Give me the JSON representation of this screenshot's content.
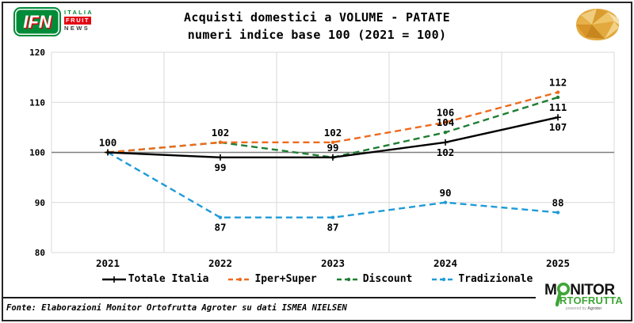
{
  "header": {
    "ifn_logo": {
      "abbr": "IFN",
      "word1": "ITALIA",
      "word2": "FRUIT",
      "word3": "NEWS"
    }
  },
  "chart_data": {
    "type": "line",
    "title": "Acquisti domestici a VOLUME - PATATE",
    "subtitle": "numeri indice base 100 (2021 = 100)",
    "categories": [
      "2021",
      "2022",
      "2023",
      "2024",
      "2025"
    ],
    "xlabel": "",
    "ylabel": "",
    "ylim": [
      80,
      120
    ],
    "yticks": [
      80,
      90,
      100,
      110,
      120
    ],
    "baseline": 100,
    "grid": "on",
    "legend_position": "bottom",
    "series": [
      {
        "name": "Totale Italia",
        "color": "#000000",
        "dash": "solid",
        "marker": "plus",
        "values": [
          100,
          99,
          99,
          102,
          107
        ],
        "labels": [
          "100",
          "99",
          null,
          "102",
          "107"
        ],
        "label_pos": [
          "above",
          "below",
          null,
          "below",
          "below"
        ]
      },
      {
        "name": "Iper+Super",
        "color": "#ED6B1E",
        "dash": "dashed",
        "marker": "dot",
        "values": [
          100,
          102,
          102,
          106,
          112
        ],
        "labels": [
          null,
          "102",
          "102",
          "106",
          "112"
        ],
        "label_pos": [
          null,
          "above",
          "above",
          "above",
          "above"
        ]
      },
      {
        "name": "Discount",
        "color": "#1E7E32",
        "dash": "dashed",
        "marker": "dot",
        "values": [
          100,
          102,
          99,
          104,
          111
        ],
        "labels": [
          null,
          null,
          "99",
          "104",
          "111"
        ],
        "label_pos": [
          null,
          null,
          "above",
          "above",
          "below"
        ]
      },
      {
        "name": "Tradizionale",
        "color": "#1F9BD8",
        "dash": "dashed",
        "marker": "dot",
        "values": [
          100,
          87,
          87,
          90,
          88
        ],
        "labels": [
          null,
          "87",
          "87",
          "90",
          "88"
        ],
        "label_pos": [
          null,
          "below",
          "below",
          "above",
          "above"
        ]
      }
    ]
  },
  "footer": {
    "fonte": "Fonte: Elaborazioni Monitor Ortofrutta Agroter su dati ISMEA NIELSEN",
    "monitor_logo": {
      "line1_prefix": "M",
      "line1_suffix": "NITOR",
      "line2": "RTOFRUTTA",
      "powered_by": "powered by",
      "brand": "Agroter"
    }
  },
  "colors": {
    "ifn_green": "#008B39",
    "ifn_red": "#E30613",
    "monitor_green": "#3EA636",
    "grid": "#D9D9D9",
    "baseline_line": "#7F7F7F",
    "frame": "#262626"
  }
}
